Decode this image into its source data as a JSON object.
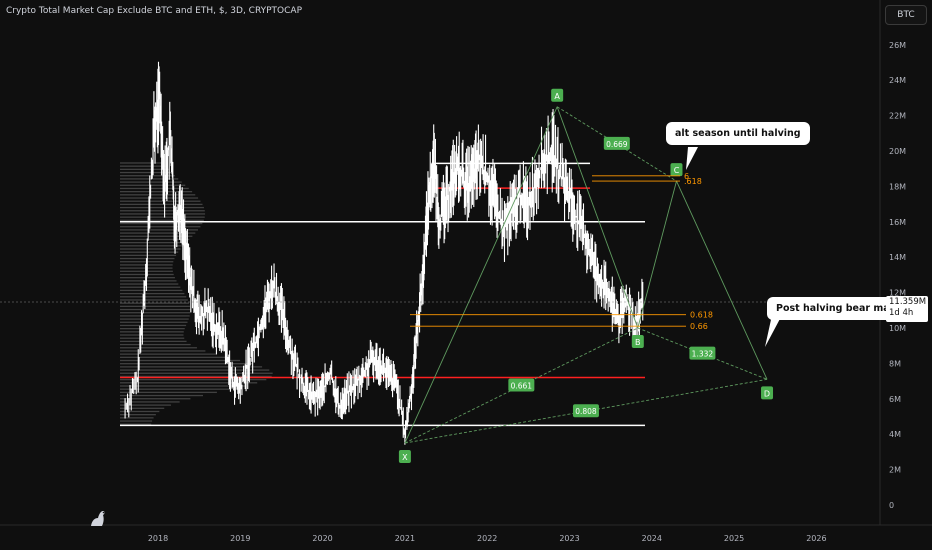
{
  "header": {
    "title": "Crypto Total Market Cap Exclude BTC and ETH, $, 3D, CRYPTOCAP",
    "ticker_button": "BTC"
  },
  "price_badge": {
    "value": "11.359M",
    "countdown": "1d 4h"
  },
  "callouts": {
    "top": "alt season until halving",
    "bottom": "Post halving bear market"
  },
  "colors": {
    "background": "#0f0f0f",
    "candle": "#ffffff",
    "pattern_line": "#5f9a5f",
    "label_green": "#4caf50",
    "fib_orange": "#ff9800",
    "support_red": "#ff2020",
    "level_white": "#ffffff"
  },
  "chart_data": {
    "type": "line",
    "x_axis": {
      "ticks": [
        "2018",
        "2019",
        "2020",
        "2021",
        "2022",
        "2023",
        "2024",
        "2025",
        "2026"
      ],
      "range": [
        2017.2,
        2026.5
      ]
    },
    "y_axis": {
      "ticks": [
        "0",
        "2M",
        "4M",
        "6M",
        "8M",
        "10M",
        "12M",
        "14M",
        "16M",
        "18M",
        "20M",
        "22M",
        "24M",
        "26M"
      ],
      "range": [
        0,
        27.5
      ],
      "unit": "$"
    },
    "series": [
      {
        "style": "candles",
        "points": [
          [
            2017.6,
            5.5
          ],
          [
            2017.75,
            7
          ],
          [
            2017.85,
            13
          ],
          [
            2017.95,
            21
          ],
          [
            2018.02,
            23
          ],
          [
            2018.08,
            18
          ],
          [
            2018.15,
            21
          ],
          [
            2018.2,
            16
          ],
          [
            2018.27,
            17
          ],
          [
            2018.35,
            14
          ],
          [
            2018.42,
            12
          ],
          [
            2018.5,
            10.5
          ],
          [
            2018.6,
            11
          ],
          [
            2018.7,
            10
          ],
          [
            2018.8,
            9.5
          ],
          [
            2018.9,
            7
          ],
          [
            2019.0,
            6.5
          ],
          [
            2019.1,
            8
          ],
          [
            2019.2,
            9.5
          ],
          [
            2019.3,
            11
          ],
          [
            2019.4,
            12.5
          ],
          [
            2019.5,
            11
          ],
          [
            2019.6,
            9
          ],
          [
            2019.7,
            7.5
          ],
          [
            2019.8,
            6.5
          ],
          [
            2019.9,
            6
          ],
          [
            2020.0,
            6.5
          ],
          [
            2020.1,
            7.5
          ],
          [
            2020.2,
            5.5
          ],
          [
            2020.3,
            6.3
          ],
          [
            2020.4,
            6.8
          ],
          [
            2020.5,
            7.4
          ],
          [
            2020.6,
            8.2
          ],
          [
            2020.7,
            8
          ],
          [
            2020.8,
            7.3
          ],
          [
            2020.9,
            6.8
          ],
          [
            2021.0,
            4
          ],
          [
            2021.08,
            6.5
          ],
          [
            2021.15,
            10
          ],
          [
            2021.22,
            13
          ],
          [
            2021.28,
            17
          ],
          [
            2021.35,
            19.5
          ],
          [
            2021.42,
            16
          ],
          [
            2021.5,
            17
          ],
          [
            2021.58,
            18.5
          ],
          [
            2021.66,
            19
          ],
          [
            2021.75,
            18
          ],
          [
            2021.83,
            18.5
          ],
          [
            2021.9,
            19.5
          ],
          [
            2022.0,
            18.5
          ],
          [
            2022.1,
            17
          ],
          [
            2022.2,
            15.5
          ],
          [
            2022.3,
            16.5
          ],
          [
            2022.4,
            17.5
          ],
          [
            2022.5,
            17
          ],
          [
            2022.6,
            18.5
          ],
          [
            2022.7,
            19.5
          ],
          [
            2022.8,
            20
          ],
          [
            2022.9,
            18.5
          ],
          [
            2023.0,
            17.5
          ],
          [
            2023.1,
            16
          ],
          [
            2023.2,
            15
          ],
          [
            2023.3,
            13.5
          ],
          [
            2023.4,
            12.5
          ],
          [
            2023.5,
            11.5
          ],
          [
            2023.6,
            10.5
          ],
          [
            2023.7,
            11.5
          ],
          [
            2023.8,
            10.3
          ],
          [
            2023.9,
            11.4
          ]
        ]
      }
    ],
    "pattern": {
      "points": [
        {
          "label": "X",
          "x": 2021.0,
          "y": 3.5
        },
        {
          "label": "A",
          "x": 2022.85,
          "y": 22.5
        },
        {
          "label": "B",
          "x": 2023.83,
          "y": 10.0
        },
        {
          "label": "C",
          "x": 2024.3,
          "y": 18.3
        },
        {
          "label": "D",
          "x": 2025.4,
          "y": 7.1
        }
      ],
      "ratios": [
        "0.669",
        "0.661",
        "1.332",
        "0.808"
      ]
    },
    "fib_levels": [
      {
        "label": "0.618",
        "y": 10.75
      },
      {
        "label": "0.66",
        "y": 10.1
      },
      {
        "label": ".618",
        "y": 18.3
      },
      {
        "label": "6",
        "y": 18.6
      }
    ],
    "horizontal_levels": [
      {
        "y": 19.3,
        "color": "white"
      },
      {
        "y": 17.9,
        "color": "red"
      },
      {
        "y": 16.0,
        "color": "white"
      },
      {
        "y": 7.2,
        "color": "red"
      },
      {
        "y": 4.5,
        "color": "white"
      }
    ],
    "current_price": 11.359
  }
}
